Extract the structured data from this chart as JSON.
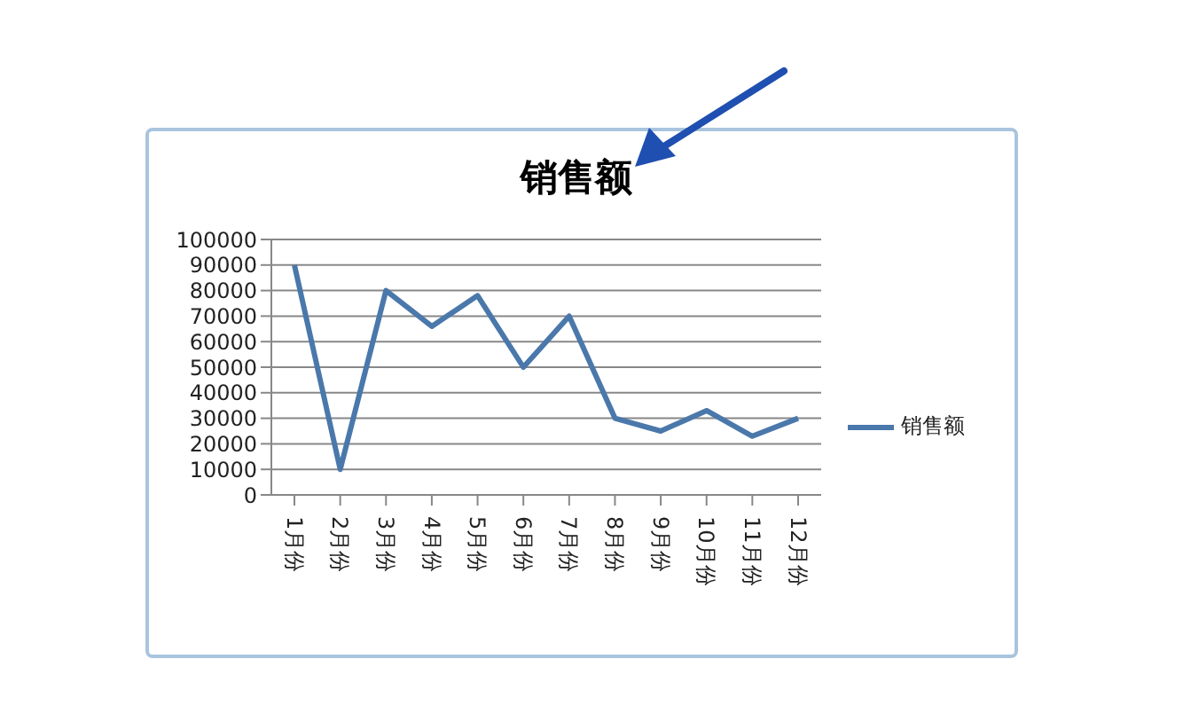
{
  "chart_data": {
    "type": "line",
    "title": "销售额",
    "categories": [
      "1月份",
      "2月份",
      "3月份",
      "4月份",
      "5月份",
      "6月份",
      "7月份",
      "8月份",
      "9月份",
      "10月份",
      "11月份",
      "12月份"
    ],
    "series": [
      {
        "name": "销售额",
        "color": "#4a78ab",
        "values": [
          90000,
          10000,
          80000,
          66000,
          78000,
          50000,
          70000,
          30000,
          25000,
          33000,
          23000,
          30000
        ]
      }
    ],
    "ylim": [
      0,
      100000
    ],
    "yticks": [
      0,
      10000,
      20000,
      30000,
      40000,
      50000,
      60000,
      70000,
      80000,
      90000,
      100000
    ],
    "grid": "y",
    "legend": "right",
    "marker": "none",
    "line_style": "solid"
  }
}
